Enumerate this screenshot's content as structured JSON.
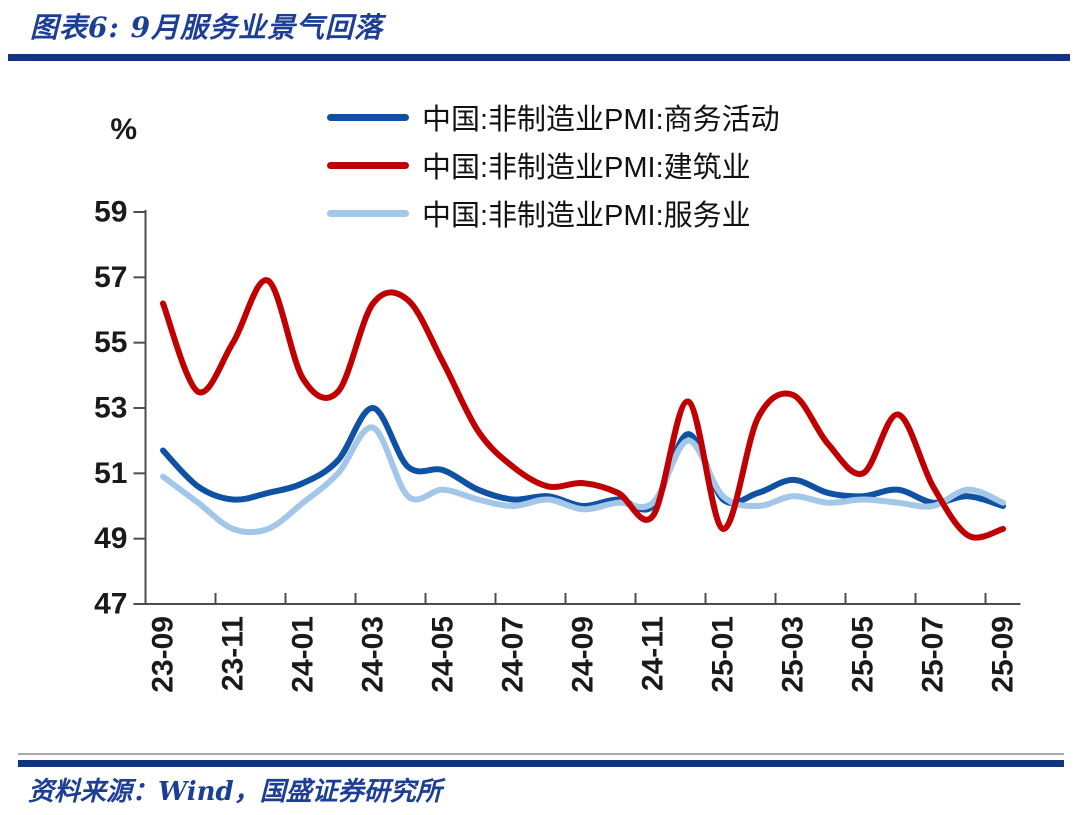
{
  "header": {
    "title": "图表6: 9月服务业景气回落"
  },
  "footer": {
    "source": "资料来源：Wind，国盛证券研究所"
  },
  "colors": {
    "title_navy": "#1d3e96",
    "rule_navy": "#10357e",
    "axis_gray": "#4d4d4d",
    "business_blue": "#0f51a3",
    "construction_red": "#c00000",
    "services_lightblue": "#a3c7e8"
  },
  "chart_data": {
    "type": "line",
    "unit": "%",
    "grid": false,
    "legend_position": "top-center",
    "ylim": [
      47,
      59
    ],
    "y_ticks": [
      47,
      49,
      51,
      53,
      55,
      57,
      59
    ],
    "x_tick_labels": [
      "23-09",
      "23-11",
      "24-01",
      "24-03",
      "24-05",
      "24-07",
      "24-09",
      "24-11",
      "25-01",
      "25-03",
      "25-05",
      "25-07",
      "25-09"
    ],
    "x": [
      "23-09",
      "23-10",
      "23-11",
      "23-12",
      "24-01",
      "24-02",
      "24-03",
      "24-04",
      "24-05",
      "24-06",
      "24-07",
      "24-08",
      "24-09",
      "24-10",
      "24-11",
      "24-12",
      "25-01",
      "25-02",
      "25-03",
      "25-04",
      "25-05",
      "25-06",
      "25-07",
      "25-08",
      "25-09"
    ],
    "series": [
      {
        "id": "business",
        "name": "中国:非制造业PMI:商务活动",
        "color": "#0f51a3",
        "values": [
          51.7,
          50.6,
          50.2,
          50.4,
          50.7,
          51.4,
          53.0,
          51.2,
          51.1,
          50.5,
          50.2,
          50.3,
          50.0,
          50.2,
          50.0,
          52.2,
          50.2,
          50.4,
          50.8,
          50.4,
          50.3,
          50.5,
          50.1,
          50.3,
          50.0
        ]
      },
      {
        "id": "construction",
        "name": "中国:非制造业PMI:建筑业",
        "color": "#c00000",
        "values": [
          56.2,
          53.5,
          55.0,
          56.9,
          53.9,
          53.5,
          56.2,
          56.3,
          54.4,
          52.3,
          51.2,
          50.6,
          50.7,
          50.4,
          49.7,
          53.2,
          49.3,
          52.7,
          53.4,
          51.9,
          51.0,
          52.8,
          50.6,
          49.1,
          49.3
        ]
      },
      {
        "id": "services",
        "name": "中国:非制造业PMI:服务业",
        "color": "#a3c7e8",
        "values": [
          50.9,
          50.1,
          49.3,
          49.3,
          50.1,
          51.0,
          52.4,
          50.3,
          50.5,
          50.2,
          50.0,
          50.2,
          49.9,
          50.1,
          50.1,
          52.0,
          50.3,
          50.0,
          50.3,
          50.1,
          50.2,
          50.1,
          50.0,
          50.5,
          50.1
        ]
      }
    ]
  }
}
